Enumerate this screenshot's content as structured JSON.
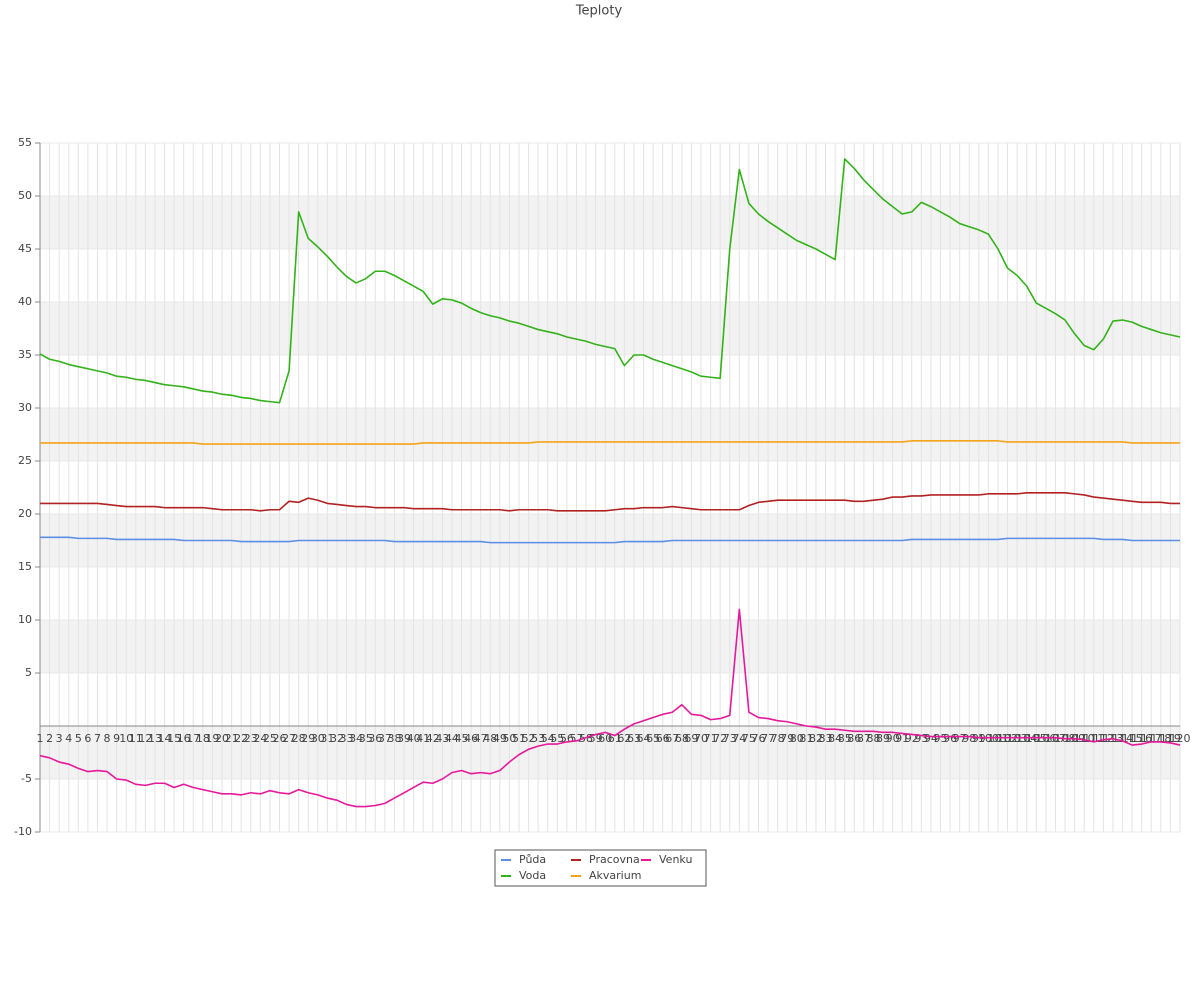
{
  "chart_data": {
    "type": "line",
    "title": "Teploty",
    "categories": [
      "1",
      "2",
      "3",
      "4",
      "5",
      "6",
      "7",
      "8",
      "9",
      "10",
      "11",
      "12",
      "13",
      "14",
      "15",
      "16",
      "17",
      "18",
      "19",
      "20",
      "21",
      "22",
      "23",
      "24",
      "25",
      "26",
      "27",
      "28",
      "29",
      "30",
      "31",
      "32",
      "33",
      "34",
      "35",
      "36",
      "37",
      "38",
      "39",
      "40",
      "41",
      "42",
      "43",
      "44",
      "45",
      "46",
      "47",
      "48",
      "49",
      "50",
      "51",
      "52",
      "53",
      "54",
      "55",
      "56",
      "57",
      "58",
      "59",
      "60",
      "61",
      "62",
      "63",
      "64",
      "65",
      "66",
      "67",
      "68",
      "69",
      "70",
      "71",
      "72",
      "73",
      "74",
      "75",
      "76",
      "77",
      "78",
      "79",
      "80",
      "81",
      "82",
      "83",
      "84",
      "85",
      "86",
      "87",
      "88",
      "89",
      "90",
      "91",
      "92",
      "93",
      "94",
      "95",
      "96",
      "97",
      "98",
      "99",
      "100",
      "101",
      "102",
      "103",
      "104",
      "105",
      "106",
      "107",
      "108",
      "109",
      "110",
      "111",
      "112",
      "113",
      "114",
      "115",
      "116",
      "117",
      "118",
      "119",
      "120"
    ],
    "series": [
      {
        "name": "Půda",
        "color": "#5b8ee6",
        "values": [
          17.8,
          17.8,
          17.8,
          17.8,
          17.7,
          17.7,
          17.7,
          17.7,
          17.6,
          17.6,
          17.6,
          17.6,
          17.6,
          17.6,
          17.6,
          17.5,
          17.5,
          17.5,
          17.5,
          17.5,
          17.5,
          17.4,
          17.4,
          17.4,
          17.4,
          17.4,
          17.4,
          17.5,
          17.5,
          17.5,
          17.5,
          17.5,
          17.5,
          17.5,
          17.5,
          17.5,
          17.5,
          17.4,
          17.4,
          17.4,
          17.4,
          17.4,
          17.4,
          17.4,
          17.4,
          17.4,
          17.4,
          17.3,
          17.3,
          17.3,
          17.3,
          17.3,
          17.3,
          17.3,
          17.3,
          17.3,
          17.3,
          17.3,
          17.3,
          17.3,
          17.3,
          17.4,
          17.4,
          17.4,
          17.4,
          17.4,
          17.5,
          17.5,
          17.5,
          17.5,
          17.5,
          17.5,
          17.5,
          17.5,
          17.5,
          17.5,
          17.5,
          17.5,
          17.5,
          17.5,
          17.5,
          17.5,
          17.5,
          17.5,
          17.5,
          17.5,
          17.5,
          17.5,
          17.5,
          17.5,
          17.5,
          17.6,
          17.6,
          17.6,
          17.6,
          17.6,
          17.6,
          17.6,
          17.6,
          17.6,
          17.6,
          17.7,
          17.7,
          17.7,
          17.7,
          17.7,
          17.7,
          17.7,
          17.7,
          17.7,
          17.7,
          17.6,
          17.6,
          17.6,
          17.5,
          17.5,
          17.5,
          17.5,
          17.5,
          17.5
        ]
      },
      {
        "name": "Voda",
        "color": "#33b21a",
        "values": [
          35.1,
          34.6,
          34.4,
          34.1,
          33.9,
          33.7,
          33.5,
          33.3,
          33.0,
          32.9,
          32.7,
          32.6,
          32.4,
          32.2,
          32.1,
          32.0,
          31.8,
          31.6,
          31.5,
          31.3,
          31.2,
          31.0,
          30.9,
          30.7,
          30.6,
          30.5,
          33.5,
          48.5,
          46.0,
          45.2,
          44.3,
          43.3,
          42.4,
          41.8,
          42.2,
          42.9,
          42.9,
          42.5,
          42.0,
          41.5,
          41.0,
          39.8,
          40.3,
          40.2,
          39.9,
          39.4,
          39.0,
          38.7,
          38.5,
          38.2,
          38.0,
          37.7,
          37.4,
          37.2,
          37.0,
          36.7,
          36.5,
          36.3,
          36.0,
          35.8,
          35.6,
          34.0,
          35.0,
          35.0,
          34.6,
          34.3,
          34.0,
          33.7,
          33.4,
          33.0,
          32.9,
          32.8,
          45.0,
          52.5,
          49.3,
          48.3,
          47.6,
          47.0,
          46.4,
          45.8,
          45.4,
          45.0,
          44.5,
          44.0,
          53.5,
          52.6,
          51.5,
          50.6,
          49.7,
          49.0,
          48.3,
          48.5,
          49.4,
          49.0,
          48.5,
          48.0,
          47.4,
          47.1,
          46.8,
          46.4,
          45.0,
          43.2,
          42.5,
          41.5,
          39.9,
          39.4,
          38.9,
          38.3,
          37.0,
          35.9,
          35.5,
          36.5,
          38.2,
          38.3,
          38.1,
          37.7,
          37.4,
          37.1,
          36.9,
          36.7
        ]
      },
      {
        "name": "Pracovna",
        "color": "#b22222",
        "values": [
          21.0,
          21.0,
          21.0,
          21.0,
          21.0,
          21.0,
          21.0,
          20.9,
          20.8,
          20.7,
          20.7,
          20.7,
          20.7,
          20.6,
          20.6,
          20.6,
          20.6,
          20.6,
          20.5,
          20.4,
          20.4,
          20.4,
          20.4,
          20.3,
          20.4,
          20.4,
          21.2,
          21.1,
          21.5,
          21.3,
          21.0,
          20.9,
          20.8,
          20.7,
          20.7,
          20.6,
          20.6,
          20.6,
          20.6,
          20.5,
          20.5,
          20.5,
          20.5,
          20.4,
          20.4,
          20.4,
          20.4,
          20.4,
          20.4,
          20.3,
          20.4,
          20.4,
          20.4,
          20.4,
          20.3,
          20.3,
          20.3,
          20.3,
          20.3,
          20.3,
          20.4,
          20.5,
          20.5,
          20.6,
          20.6,
          20.6,
          20.7,
          20.6,
          20.5,
          20.4,
          20.4,
          20.4,
          20.4,
          20.4,
          20.8,
          21.1,
          21.2,
          21.3,
          21.3,
          21.3,
          21.3,
          21.3,
          21.3,
          21.3,
          21.3,
          21.2,
          21.2,
          21.3,
          21.4,
          21.6,
          21.6,
          21.7,
          21.7,
          21.8,
          21.8,
          21.8,
          21.8,
          21.8,
          21.8,
          21.9,
          21.9,
          21.9,
          21.9,
          22.0,
          22.0,
          22.0,
          22.0,
          22.0,
          21.9,
          21.8,
          21.6,
          21.5,
          21.4,
          21.3,
          21.2,
          21.1,
          21.1,
          21.1,
          21.0,
          21.0
        ]
      },
      {
        "name": "Akvarium",
        "color": "#f5a31a",
        "values": [
          26.7,
          26.7,
          26.7,
          26.7,
          26.7,
          26.7,
          26.7,
          26.7,
          26.7,
          26.7,
          26.7,
          26.7,
          26.7,
          26.7,
          26.7,
          26.7,
          26.7,
          26.6,
          26.6,
          26.6,
          26.6,
          26.6,
          26.6,
          26.6,
          26.6,
          26.6,
          26.6,
          26.6,
          26.6,
          26.6,
          26.6,
          26.6,
          26.6,
          26.6,
          26.6,
          26.6,
          26.6,
          26.6,
          26.6,
          26.6,
          26.7,
          26.7,
          26.7,
          26.7,
          26.7,
          26.7,
          26.7,
          26.7,
          26.7,
          26.7,
          26.7,
          26.7,
          26.8,
          26.8,
          26.8,
          26.8,
          26.8,
          26.8,
          26.8,
          26.8,
          26.8,
          26.8,
          26.8,
          26.8,
          26.8,
          26.8,
          26.8,
          26.8,
          26.8,
          26.8,
          26.8,
          26.8,
          26.8,
          26.8,
          26.8,
          26.8,
          26.8,
          26.8,
          26.8,
          26.8,
          26.8,
          26.8,
          26.8,
          26.8,
          26.8,
          26.8,
          26.8,
          26.8,
          26.8,
          26.8,
          26.8,
          26.9,
          26.9,
          26.9,
          26.9,
          26.9,
          26.9,
          26.9,
          26.9,
          26.9,
          26.9,
          26.8,
          26.8,
          26.8,
          26.8,
          26.8,
          26.8,
          26.8,
          26.8,
          26.8,
          26.8,
          26.8,
          26.8,
          26.8,
          26.7,
          26.7,
          26.7,
          26.7,
          26.7,
          26.7
        ]
      },
      {
        "name": "Venku",
        "color": "#e6199b",
        "values": [
          -2.8,
          -3.0,
          -3.4,
          -3.6,
          -4.0,
          -4.3,
          -4.2,
          -4.3,
          -5.0,
          -5.1,
          -5.5,
          -5.6,
          -5.4,
          -5.4,
          -5.8,
          -5.5,
          -5.8,
          -6.0,
          -6.2,
          -6.4,
          -6.4,
          -6.5,
          -6.3,
          -6.4,
          -6.1,
          -6.3,
          -6.4,
          -6.0,
          -6.3,
          -6.5,
          -6.8,
          -7.0,
          -7.4,
          -7.6,
          -7.6,
          -7.5,
          -7.3,
          -6.8,
          -6.3,
          -5.8,
          -5.3,
          -5.4,
          -5.0,
          -4.4,
          -4.2,
          -4.5,
          -4.4,
          -4.5,
          -4.2,
          -3.4,
          -2.7,
          -2.2,
          -1.9,
          -1.7,
          -1.7,
          -1.5,
          -1.4,
          -1.1,
          -0.8,
          -0.6,
          -0.9,
          -0.3,
          0.2,
          0.5,
          0.8,
          1.1,
          1.3,
          2.0,
          1.1,
          1.0,
          0.6,
          0.7,
          1.0,
          11.0,
          1.3,
          0.8,
          0.7,
          0.5,
          0.4,
          0.2,
          0.0,
          -0.1,
          -0.3,
          -0.3,
          -0.4,
          -0.5,
          -0.5,
          -0.5,
          -0.6,
          -0.6,
          -0.7,
          -0.8,
          -0.9,
          -1.0,
          -1.0,
          -1.0,
          -1.0,
          -1.0,
          -1.1,
          -1.1,
          -1.1,
          -1.1,
          -1.1,
          -1.1,
          -1.1,
          -1.1,
          -1.1,
          -1.2,
          -1.2,
          -1.3,
          -1.5,
          -1.3,
          -1.2,
          -1.4,
          -1.8,
          -1.7,
          -1.5,
          -1.5,
          -1.6,
          -1.8
        ]
      }
    ],
    "ylim": [
      -10,
      55
    ],
    "yticks": [
      -10,
      -5,
      5,
      10,
      15,
      20,
      25,
      30,
      35,
      40,
      45,
      50,
      55
    ],
    "grid": true,
    "legend": "bottom"
  }
}
